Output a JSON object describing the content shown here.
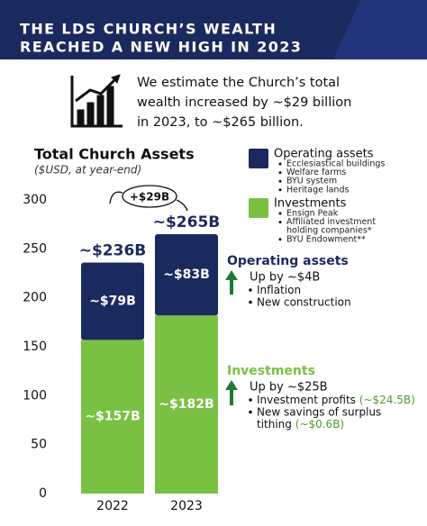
{
  "header": {
    "title_lines": [
      "THE LDS CHURCH’S WEALTH",
      "REACHED A NEW HIGH IN 2023"
    ]
  },
  "intro": {
    "lines": [
      "We estimate the Church’s total",
      "wealth increased by ~$29 billion",
      "in 2023, to ~$265 billion."
    ]
  },
  "chart_data": {
    "type": "stacked_bar",
    "title": "Total Church Assets",
    "subtitle": "($USD, at year-end)",
    "categories": [
      "2022",
      "2023"
    ],
    "series": [
      {
        "name": "Investments",
        "color": "#7ac143",
        "values": [
          157,
          182
        ],
        "value_labels": [
          "~$157B",
          "~$182B"
        ]
      },
      {
        "name": "Operating assets",
        "color": "#1b2a5e",
        "values": [
          79,
          83
        ],
        "value_labels": [
          "~$79B",
          "~$83B"
        ]
      }
    ],
    "totals": [
      236,
      265
    ],
    "total_labels": [
      "~$236B",
      "~$265B"
    ],
    "change": 29,
    "change_label": "+$29B",
    "ylim": [
      0,
      300
    ],
    "yticks": [
      0,
      50,
      100,
      150,
      200,
      250,
      300
    ],
    "grid": false
  },
  "legend": {
    "operating_items": [
      "Ecclesiastical buildings",
      "Welfare farms",
      "BYU system",
      "Heritage lands"
    ],
    "investment_items": [
      "Ensign Peak",
      "Affiliated investment",
      "holding companies*",
      "BYU Endowment**"
    ]
  },
  "callouts": {
    "operating": {
      "heading": "Operating assets",
      "change": "Up by ~$4B",
      "bullets": [
        "Inflation",
        "New construction"
      ]
    },
    "investments": {
      "heading": "Investments",
      "change": "Up by ~$25B",
      "bullets": [
        {
          "text": "Investment profits",
          "note": "(~$24.5B)"
        },
        {
          "text": "New savings of surplus"
        },
        {
          "text": "tithing",
          "note": "(~$0.6B)"
        }
      ]
    }
  }
}
